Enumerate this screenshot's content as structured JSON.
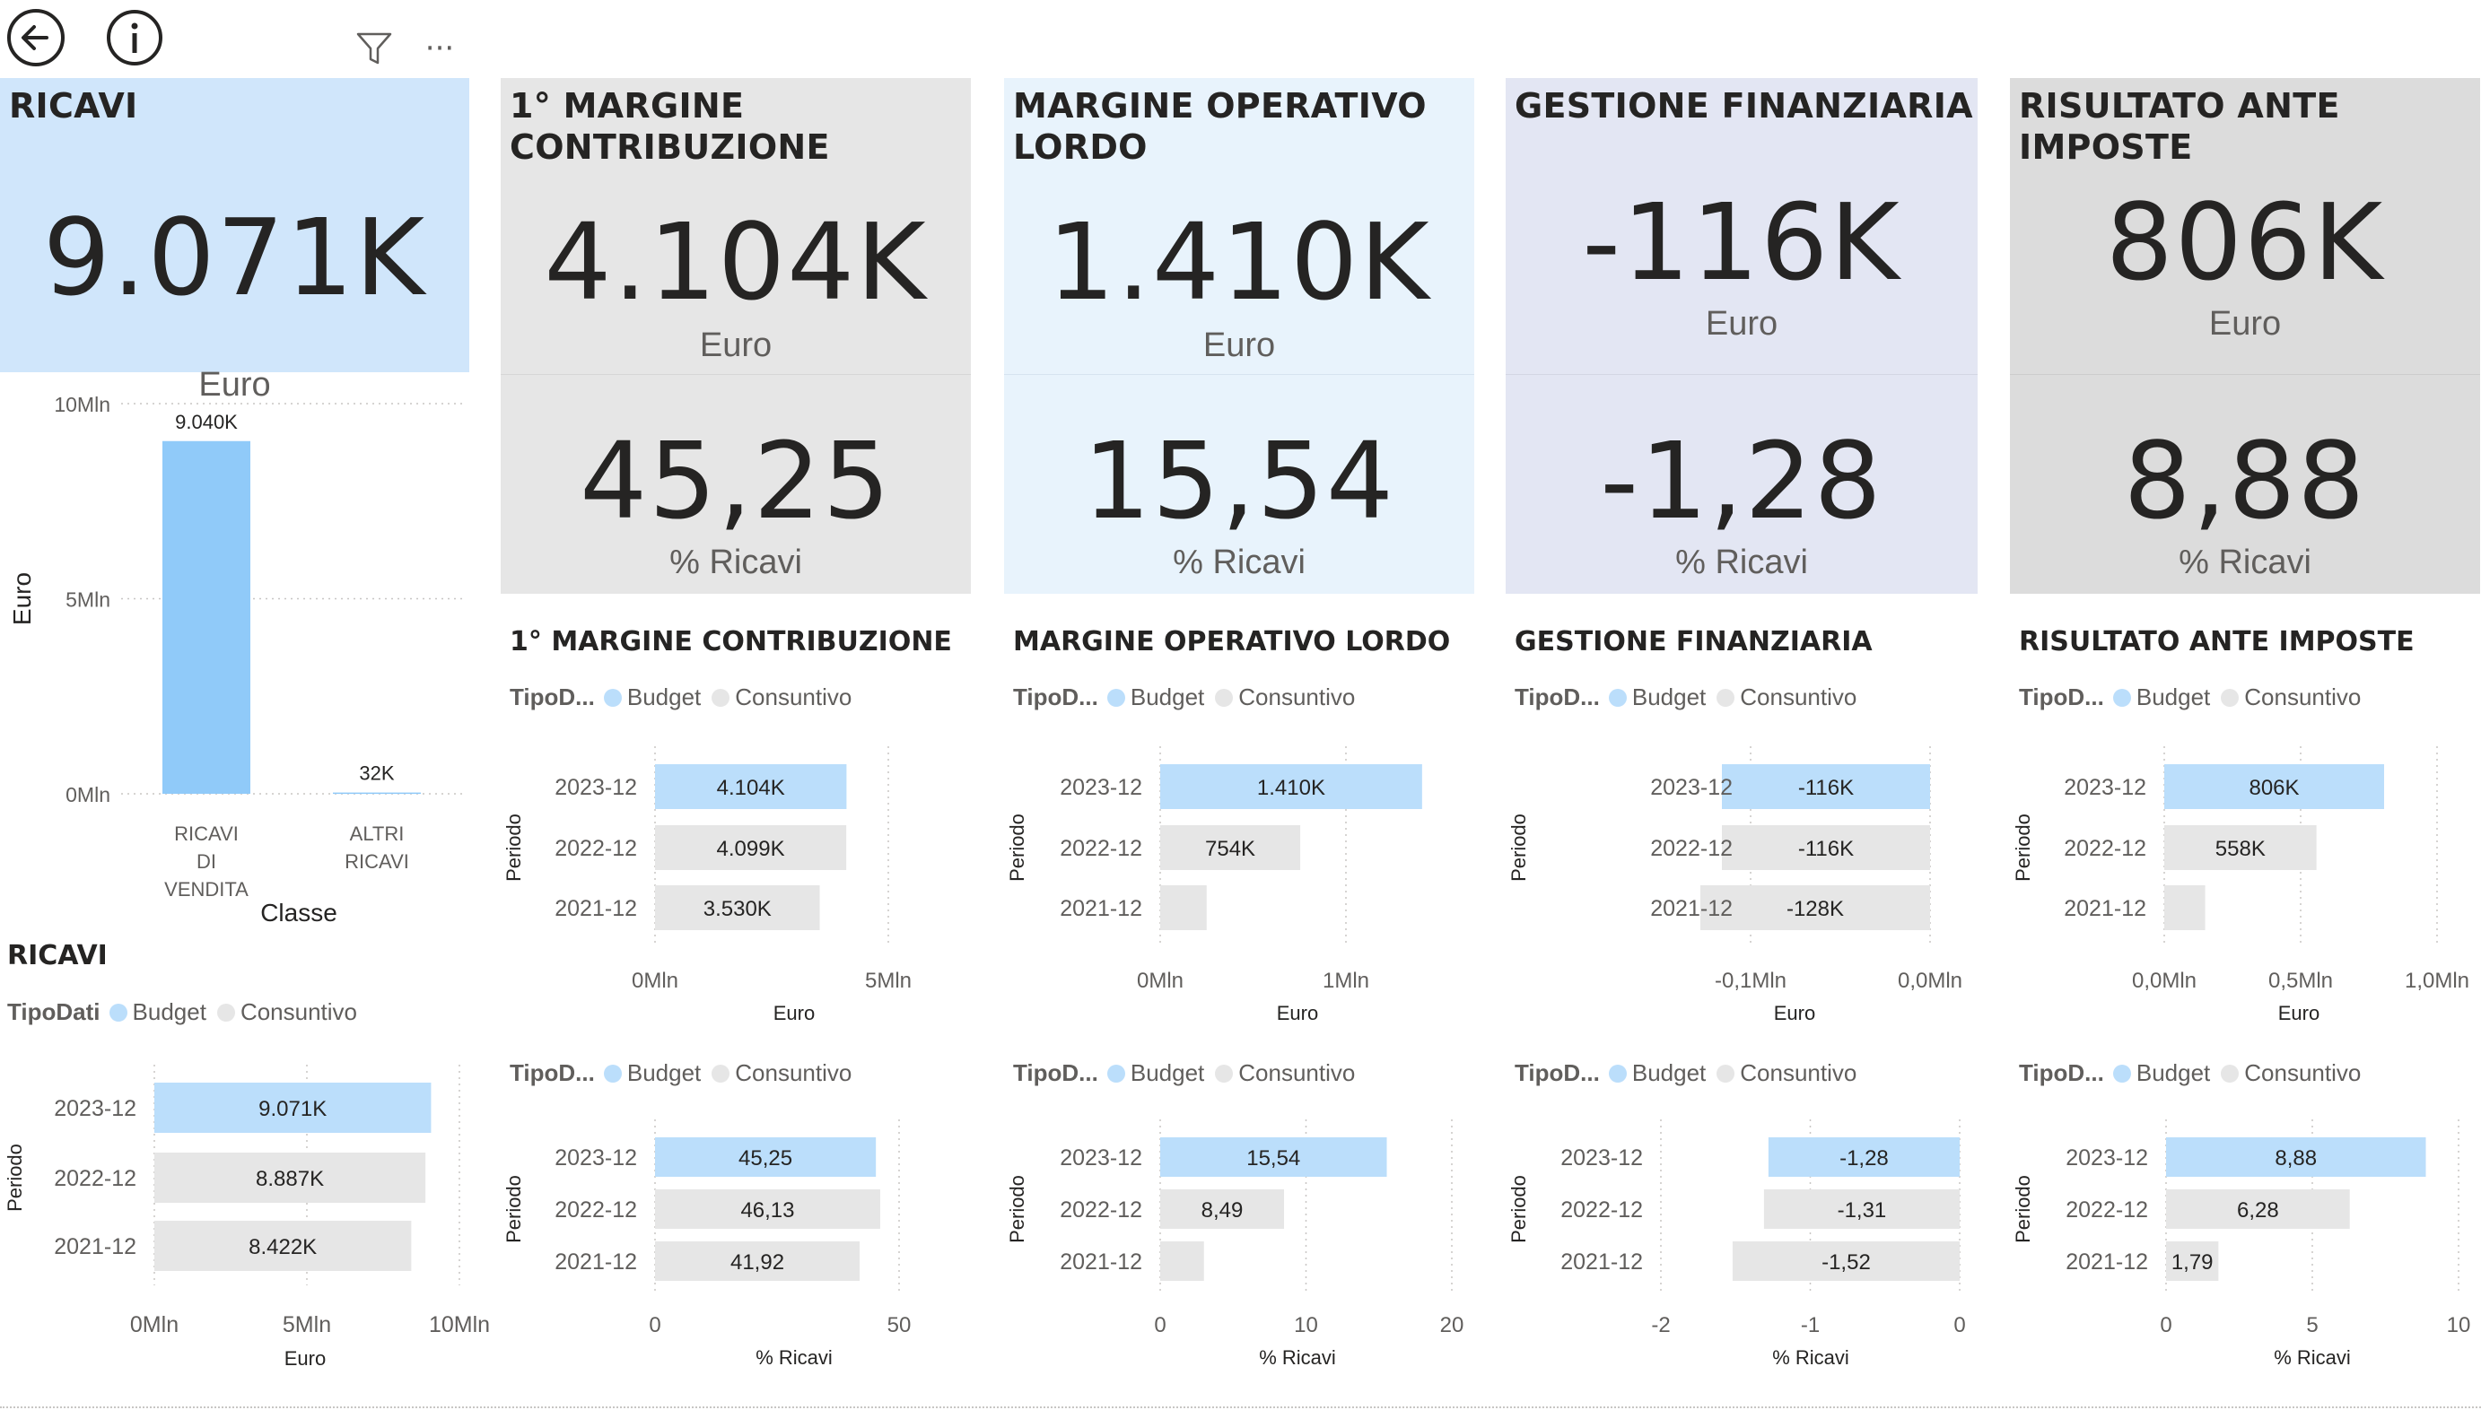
{
  "toolbar": {
    "back_icon": "back-arrow-icon",
    "info_icon": "info-icon",
    "filter_icon": "filter-icon",
    "more_icon": "more-options-icon",
    "more_label": "···"
  },
  "colors": {
    "budget": "#90caf9",
    "budget_light": "#bbdefb",
    "consuntivo": "#e6e6e6",
    "card_blue": "#d0e6fb",
    "card_gray": "#e6e6e6",
    "card_lightblue": "#e8f3fc",
    "card_lavender": "#e3e6f3",
    "card_darkgray": "#dcdcdc"
  },
  "cards": [
    {
      "title": "RICAVI",
      "value": "9.071K",
      "unit": "Euro"
    },
    {
      "title": "1° MARGINE\nCONTRIBUZIONE",
      "value": "4.104K",
      "unit": "Euro",
      "pct": "45,25",
      "pct_unit": "% Ricavi"
    },
    {
      "title": "MARGINE OPERATIVO\nLORDO",
      "value": "1.410K",
      "unit": "Euro",
      "pct": "15,54",
      "pct_unit": "% Ricavi"
    },
    {
      "title": "GESTIONE FINANZIARIA",
      "value": "-116K",
      "unit": "Euro",
      "pct": "-1,28",
      "pct_unit": "% Ricavi"
    },
    {
      "title": "RISULTATO ANTE IMPOSTE",
      "value": "806K",
      "unit": "Euro",
      "pct": "8,88",
      "pct_unit": "% Ricavi"
    }
  ],
  "section_titles": [
    "RICAVI",
    "1° MARGINE CONTRIBUZIONE",
    "MARGINE OPERATIVO LORDO",
    "GESTIONE FINANZIARIA",
    "RISULTATO ANTE IMPOSTE"
  ],
  "legend": {
    "short_title": "TipoD...",
    "full_title": "TipoDati",
    "budget": "Budget",
    "consuntivo": "Consuntivo"
  },
  "chart_data": [
    {
      "id": "classe",
      "type": "bar",
      "categories": [
        "RICAVI DI VENDITA",
        "ALTRI RICAVI"
      ],
      "category_lines": [
        [
          "RICAVI",
          "DI",
          "VENDITA"
        ],
        [
          "ALTRI",
          "RICAVI"
        ]
      ],
      "values": [
        9040,
        32
      ],
      "data_labels": [
        "9.040K",
        "32K"
      ],
      "xlabel": "Classe",
      "ylabel": "Euro",
      "ylim": [
        0,
        10000
      ],
      "yticks": [
        0,
        5000,
        10000
      ],
      "ytick_labels": [
        "0Mln",
        "5Mln",
        "10Mln"
      ],
      "grid": true
    },
    {
      "id": "ricavi-euro",
      "type": "bar",
      "orientation": "horizontal",
      "categories": [
        "2023-12",
        "2022-12",
        "2021-12"
      ],
      "series_type": [
        "Budget",
        "Consuntivo",
        "Consuntivo"
      ],
      "values": [
        9071,
        8887,
        8422
      ],
      "data_labels": [
        "9.071K",
        "8.887K",
        "8.422K"
      ],
      "xlabel": "Euro",
      "ylabel": "Periodo",
      "xlim": [
        0,
        10000
      ],
      "xticks": [
        0,
        5000,
        10000
      ],
      "xtick_labels": [
        "0Mln",
        "5Mln",
        "10Mln"
      ]
    },
    {
      "id": "margine1-euro",
      "type": "bar",
      "orientation": "horizontal",
      "categories": [
        "2023-12",
        "2022-12",
        "2021-12"
      ],
      "series_type": [
        "Budget",
        "Consuntivo",
        "Consuntivo"
      ],
      "values": [
        4104,
        4099,
        3530
      ],
      "data_labels": [
        "4.104K",
        "4.099K",
        "3.530K"
      ],
      "xlabel": "Euro",
      "ylabel": "Periodo",
      "xlim": [
        0,
        5000
      ],
      "xticks": [
        0,
        5000
      ],
      "xtick_labels": [
        "0Mln",
        "5Mln"
      ]
    },
    {
      "id": "mol-euro",
      "type": "bar",
      "orientation": "horizontal",
      "categories": [
        "2023-12",
        "2022-12",
        "2021-12"
      ],
      "series_type": [
        "Budget",
        "Consuntivo",
        "Consuntivo"
      ],
      "values": [
        1410,
        754,
        250
      ],
      "data_labels": [
        "1.410K",
        "754K",
        ""
      ],
      "xlabel": "Euro",
      "ylabel": "Periodo",
      "xlim": [
        0,
        1000
      ],
      "xticks": [
        0,
        1000
      ],
      "xtick_labels": [
        "0Mln",
        "1Mln"
      ]
    },
    {
      "id": "finanziaria-euro",
      "type": "bar",
      "orientation": "horizontal",
      "categories": [
        "2023-12",
        "2022-12",
        "2021-12"
      ],
      "series_type": [
        "Budget",
        "Consuntivo",
        "Consuntivo"
      ],
      "values": [
        -116,
        -116,
        -128
      ],
      "data_labels": [
        "-116K",
        "-116K",
        "-128K"
      ],
      "xlabel": "Euro",
      "ylabel": "Periodo",
      "xlim": [
        -100,
        0
      ],
      "xticks": [
        -100,
        0
      ],
      "xtick_labels": [
        "-0,1Mln",
        "0,0Mln"
      ]
    },
    {
      "id": "risultato-euro",
      "type": "bar",
      "orientation": "horizontal",
      "categories": [
        "2023-12",
        "2022-12",
        "2021-12"
      ],
      "series_type": [
        "Budget",
        "Consuntivo",
        "Consuntivo"
      ],
      "values": [
        806,
        558,
        150
      ],
      "data_labels": [
        "806K",
        "558K",
        ""
      ],
      "xlabel": "Euro",
      "ylabel": "Periodo",
      "xlim": [
        0,
        1000
      ],
      "xticks": [
        0,
        500,
        1000
      ],
      "xtick_labels": [
        "0,0Mln",
        "0,5Mln",
        "1,0Mln"
      ]
    },
    {
      "id": "margine1-pct",
      "type": "bar",
      "orientation": "horizontal",
      "categories": [
        "2023-12",
        "2022-12",
        "2021-12"
      ],
      "series_type": [
        "Budget",
        "Consuntivo",
        "Consuntivo"
      ],
      "values": [
        45.25,
        46.13,
        41.92
      ],
      "data_labels": [
        "45,25",
        "46,13",
        "41,92"
      ],
      "xlabel": "% Ricavi",
      "ylabel": "Periodo",
      "xlim": [
        0,
        50
      ],
      "xticks": [
        0,
        50
      ],
      "xtick_labels": [
        "0",
        "50"
      ]
    },
    {
      "id": "mol-pct",
      "type": "bar",
      "orientation": "horizontal",
      "categories": [
        "2023-12",
        "2022-12",
        "2021-12"
      ],
      "series_type": [
        "Budget",
        "Consuntivo",
        "Consuntivo"
      ],
      "values": [
        15.54,
        8.49,
        3.0
      ],
      "data_labels": [
        "15,54",
        "8,49",
        ""
      ],
      "xlabel": "% Ricavi",
      "ylabel": "Periodo",
      "xlim": [
        0,
        20
      ],
      "xticks": [
        0,
        10,
        20
      ],
      "xtick_labels": [
        "0",
        "10",
        "20"
      ]
    },
    {
      "id": "finanziaria-pct",
      "type": "bar",
      "orientation": "horizontal",
      "categories": [
        "2023-12",
        "2022-12",
        "2021-12"
      ],
      "series_type": [
        "Budget",
        "Consuntivo",
        "Consuntivo"
      ],
      "values": [
        -1.28,
        -1.31,
        -1.52
      ],
      "data_labels": [
        "-1,28",
        "-1,31",
        "-1,52"
      ],
      "xlabel": "% Ricavi",
      "ylabel": "Periodo",
      "xlim": [
        -2,
        0
      ],
      "xticks": [
        -2,
        -1,
        0
      ],
      "xtick_labels": [
        "-2",
        "-1",
        "0"
      ]
    },
    {
      "id": "risultato-pct",
      "type": "bar",
      "orientation": "horizontal",
      "categories": [
        "2023-12",
        "2022-12",
        "2021-12"
      ],
      "series_type": [
        "Budget",
        "Consuntivo",
        "Consuntivo"
      ],
      "values": [
        8.88,
        6.28,
        1.79
      ],
      "data_labels": [
        "8,88",
        "6,28",
        "1,79"
      ],
      "xlabel": "% Ricavi",
      "ylabel": "Periodo",
      "xlim": [
        0,
        10
      ],
      "xticks": [
        0,
        5,
        10
      ],
      "xtick_labels": [
        "0",
        "5",
        "10"
      ]
    }
  ]
}
